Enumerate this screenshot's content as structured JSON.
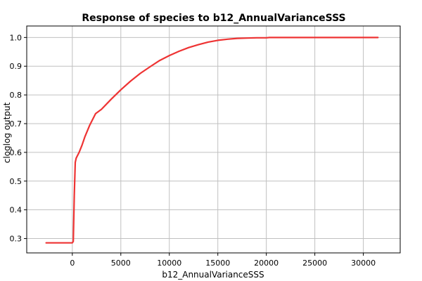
{
  "chart_data": {
    "type": "line",
    "title": "Response of species to b12_AnnualVarianceSSS",
    "xlabel": "b12_AnnualVarianceSSS",
    "ylabel": "cloglog output",
    "xlim": [
      -4700,
      33800
    ],
    "ylim": [
      0.25,
      1.04
    ],
    "xticks": [
      0,
      5000,
      10000,
      15000,
      20000,
      25000,
      30000
    ],
    "yticks": [
      0.3,
      0.4,
      0.5,
      0.6,
      0.7,
      0.8,
      0.9,
      1.0
    ],
    "xtick_labels": [
      "0",
      "5000",
      "10000",
      "15000",
      "20000",
      "25000",
      "30000"
    ],
    "ytick_labels": [
      "0.3",
      "0.4",
      "0.5",
      "0.6",
      "0.7",
      "0.8",
      "0.9",
      "1.0"
    ],
    "grid": true,
    "legend": "none",
    "series": [
      {
        "color": "#ee3333",
        "x": [
          -2700,
          -100,
          0,
          100,
          200,
          300,
          400,
          700,
          1000,
          1300,
          1800,
          2400,
          3000,
          4000,
          5000,
          6000,
          7000,
          8000,
          9000,
          10000,
          11000,
          12000,
          13000,
          14000,
          15000,
          16000,
          17000,
          18000,
          19000,
          20000,
          20300,
          25000,
          30000,
          31500
        ],
        "y": [
          0.285,
          0.285,
          0.285,
          0.29,
          0.45,
          0.565,
          0.58,
          0.6,
          0.625,
          0.655,
          0.695,
          0.735,
          0.75,
          0.785,
          0.818,
          0.848,
          0.875,
          0.898,
          0.92,
          0.937,
          0.952,
          0.965,
          0.975,
          0.984,
          0.99,
          0.994,
          0.997,
          0.998,
          0.999,
          0.999,
          1.0,
          1.0,
          1.0,
          1.0
        ]
      }
    ]
  }
}
